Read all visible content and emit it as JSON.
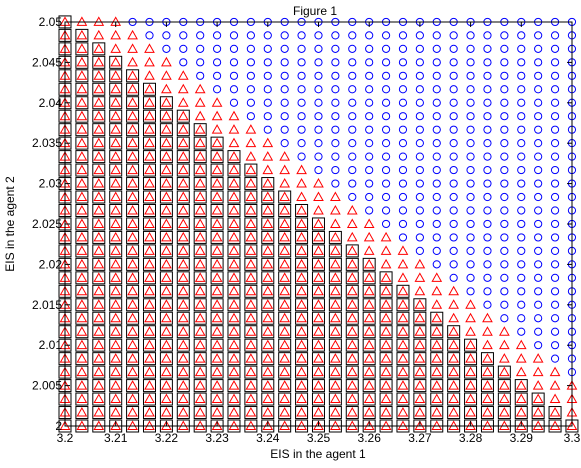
{
  "chart_data": {
    "type": "scatter",
    "title": "Figure 1",
    "xlabel": "EIS in the agent 1",
    "ylabel": "EIS in the agent 2",
    "xlim": [
      3.2,
      3.3
    ],
    "ylim": [
      2.0,
      2.05
    ],
    "grid": false,
    "legend": "none",
    "x_ticks": [
      3.2,
      3.21,
      3.22,
      3.23,
      3.24,
      3.25,
      3.26,
      3.27,
      3.28,
      3.29,
      3.3
    ],
    "x_tick_labels": [
      "3.2",
      "3.21",
      "3.22",
      "3.23",
      "3.24",
      "3.25",
      "3.26",
      "3.27",
      "3.28",
      "3.29",
      "3.3"
    ],
    "y_ticks": [
      2.0,
      2.005,
      2.01,
      2.015,
      2.02,
      2.025,
      2.03,
      2.035,
      2.04,
      2.045,
      2.05
    ],
    "y_tick_labels": [
      "2",
      "2.005",
      "2.01",
      "2.015",
      "2.02",
      "2.025",
      "2.03",
      "2.035",
      "2.04",
      "2.045",
      "2.05"
    ],
    "grid_x": {
      "start": 3.2,
      "step": 0.003333,
      "count": 31
    },
    "grid_y": {
      "start": 2.0,
      "step": 0.001667,
      "count": 31
    },
    "region_boundaries": {
      "triangle_max_row_by_column": [
        30,
        30,
        30,
        30,
        29,
        28,
        27,
        26,
        25,
        24,
        23,
        22,
        21,
        20,
        19,
        18,
        17,
        16,
        15,
        14,
        13,
        12,
        11,
        10,
        9,
        8,
        7,
        6,
        5,
        4,
        3
      ],
      "square_max_row_by_column": [
        30,
        29,
        28,
        27,
        26,
        25,
        24,
        23,
        22,
        21,
        20,
        19,
        18,
        17,
        16,
        15,
        14,
        13,
        12,
        11,
        10,
        9,
        8,
        7,
        6,
        5,
        4,
        3,
        2,
        1,
        0
      ]
    },
    "series": [
      {
        "marker": "circle",
        "color": "#0000ff",
        "description_points": "all grid points above triangle region"
      },
      {
        "marker": "triangle",
        "color": "#ff0000",
        "description_points": "grid points with row <= triangle_max_row_by_column"
      },
      {
        "marker": "square",
        "color": "#000000",
        "description_points": "grid points with row <= square_max_row_by_column"
      }
    ]
  }
}
